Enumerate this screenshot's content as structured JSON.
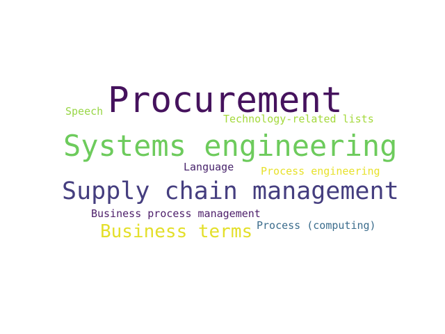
{
  "words": [
    {
      "text": "Procurement",
      "color": "#45125d"
    },
    {
      "text": "Systems engineering",
      "color": "#6dcb5c"
    },
    {
      "text": "Supply chain management",
      "color": "#453e7f"
    },
    {
      "text": "Business terms",
      "color": "#e3df2a"
    },
    {
      "text": "Speech",
      "color": "#98d646"
    },
    {
      "text": "Technology-related lists",
      "color": "#a4d93c"
    },
    {
      "text": "Language",
      "color": "#47236b"
    },
    {
      "text": "Process engineering",
      "color": "#e7e12b"
    },
    {
      "text": "Business process management",
      "color": "#4c1d69"
    },
    {
      "text": "Process (computing)",
      "color": "#3b6c8c"
    }
  ]
}
